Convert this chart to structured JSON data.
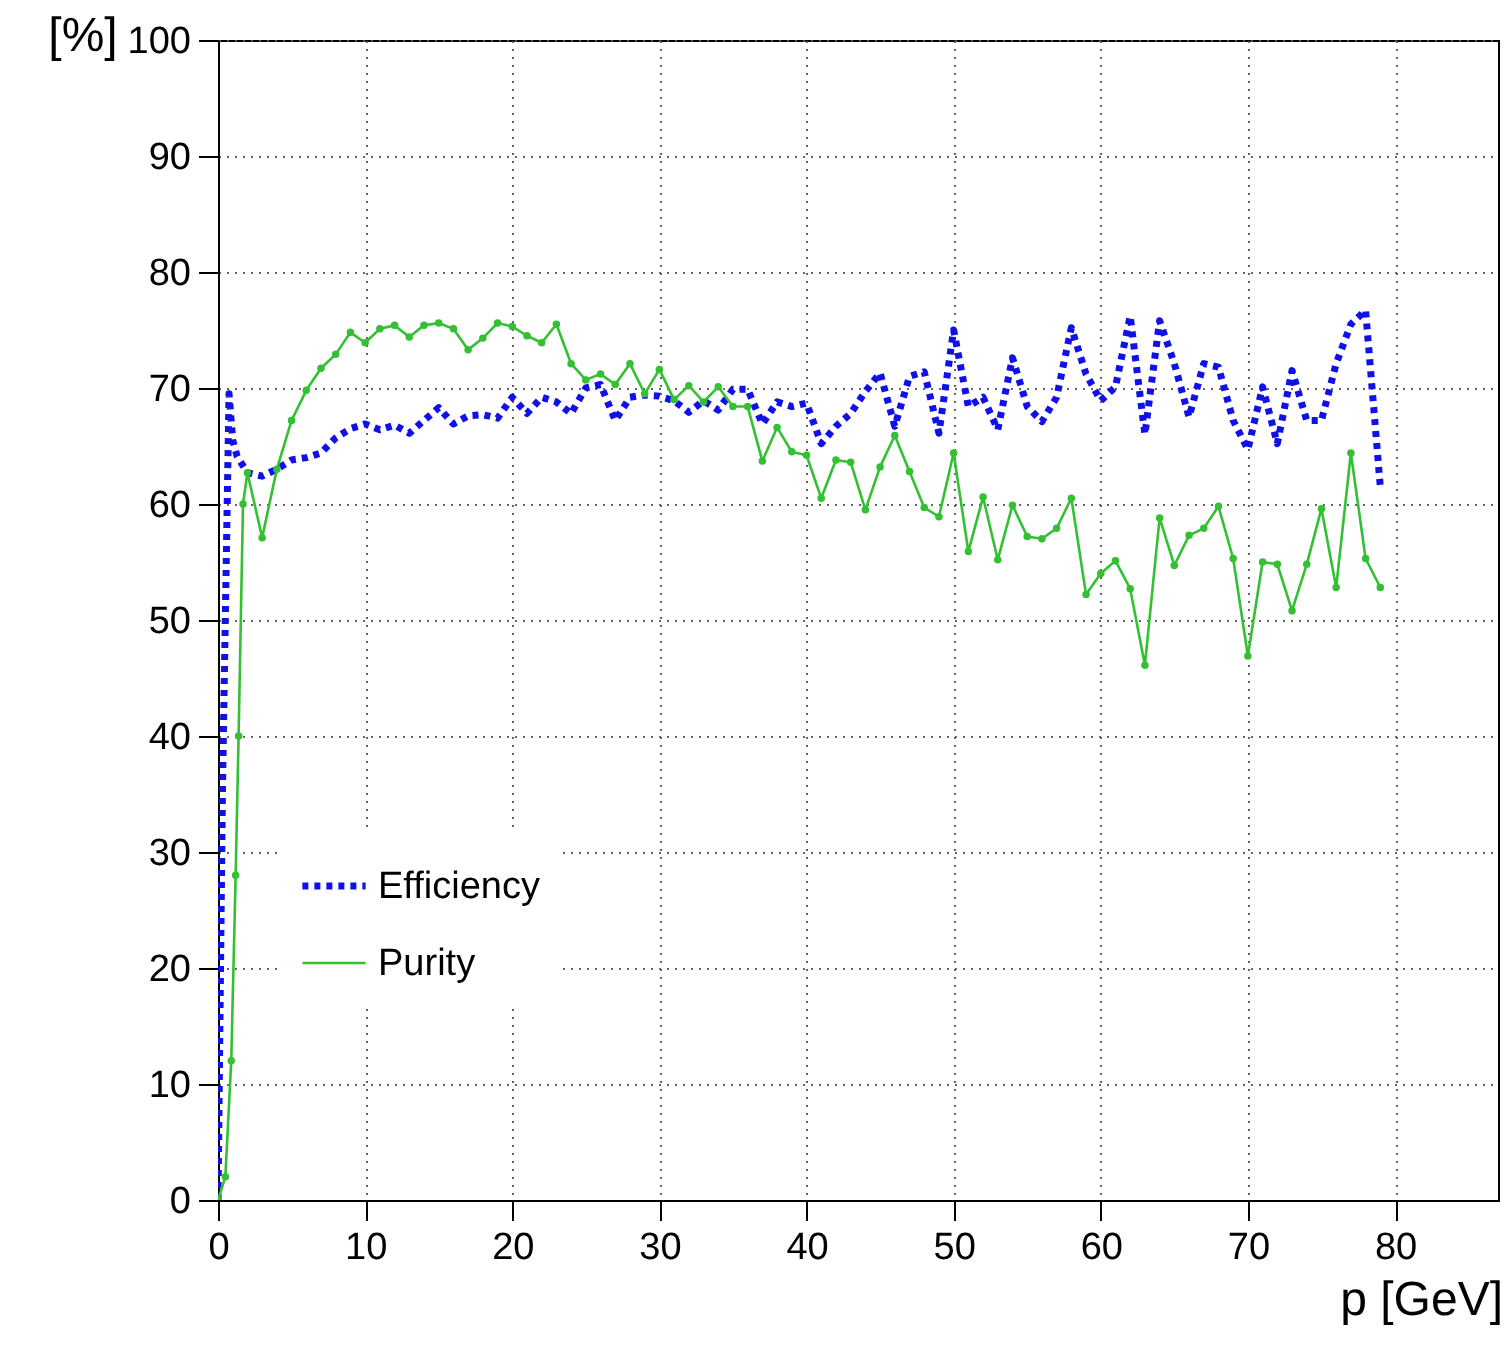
{
  "chart_data": {
    "type": "line",
    "xlabel": "p [GeV]",
    "ylabel": "[%]",
    "xlim": [
      0,
      87
    ],
    "xticks": [
      0,
      10,
      20,
      30,
      40,
      50,
      60,
      70,
      80
    ],
    "ylim": [
      0,
      100
    ],
    "yticks": [
      0,
      10,
      20,
      30,
      40,
      50,
      60,
      70,
      80,
      90,
      100
    ],
    "grid": true,
    "legend": "bottom left",
    "series": [
      {
        "name": "Efficiency",
        "color": "#1010e8",
        "line_style": "dotted",
        "marker": "none",
        "x": [
          0,
          0.3,
          0.75,
          1,
          1.3,
          2,
          3,
          4,
          5,
          6,
          7,
          8,
          9,
          10,
          11,
          12,
          13,
          14,
          15,
          16,
          17,
          18,
          19,
          20,
          21,
          22,
          23,
          24,
          25,
          26,
          27,
          28,
          29,
          30,
          31,
          32,
          33,
          34,
          35,
          36,
          37,
          38,
          39,
          40,
          41,
          42,
          43,
          44,
          45,
          46,
          47,
          48,
          49,
          50,
          51,
          52,
          53,
          54,
          55,
          56,
          57,
          58,
          59,
          60,
          61,
          62,
          63,
          64,
          65,
          66,
          67,
          68,
          69,
          70,
          71,
          72,
          73,
          74,
          75,
          76,
          77,
          78,
          79
        ],
        "values": [
          0,
          35,
          69.5,
          65.5,
          64.1,
          62.7,
          62.4,
          63.0,
          63.8,
          64.0,
          64.4,
          65.7,
          66.5,
          66.9,
          66.4,
          66.8,
          66.1,
          67.2,
          68.3,
          66.9,
          67.6,
          67.7,
          67.4,
          69.2,
          67.8,
          69.2,
          68.8,
          67.8,
          70.0,
          70.3,
          67.2,
          69.2,
          69.4,
          69.3,
          68.9,
          67.9,
          68.9,
          68.1,
          69.9,
          69.9,
          66.9,
          68.8,
          68.4,
          68.7,
          65.2,
          66.7,
          67.8,
          69.7,
          71.3,
          66.7,
          71.0,
          71.4,
          66.1,
          75.0,
          68.4,
          69.2,
          66.4,
          72.6,
          68.4,
          67.1,
          69.2,
          75.2,
          71.2,
          68.9,
          70.1,
          76.2,
          66.0,
          75.8,
          72.1,
          67.5,
          72.1,
          71.8,
          67.2,
          64.7,
          70.1,
          65.2,
          71.5,
          67.2,
          67.2,
          72.1,
          75.5,
          76.7,
          61.5
        ]
      },
      {
        "name": "Purity",
        "color": "#33c033",
        "line_style": "solid",
        "marker": "circle",
        "x": [
          0,
          0.5,
          0.9,
          1.2,
          1.4,
          1.7,
          2,
          3,
          4,
          5,
          6,
          7,
          8,
          9,
          10,
          11,
          12,
          13,
          14,
          15,
          16,
          17,
          18,
          19,
          20,
          21,
          22,
          23,
          24,
          25,
          26,
          27,
          28,
          29,
          30,
          31,
          32,
          33,
          34,
          35,
          36,
          37,
          38,
          39,
          40,
          41,
          42,
          43,
          44,
          45,
          46,
          47,
          48,
          49,
          50,
          51,
          52,
          53,
          54,
          55,
          56,
          57,
          58,
          59,
          60,
          61,
          62,
          63,
          64,
          65,
          66,
          67,
          68,
          69,
          70,
          71,
          72,
          73,
          74,
          75,
          76,
          77,
          78,
          79
        ],
        "values": [
          0,
          2,
          12,
          28,
          40,
          60,
          62.7,
          57.1,
          63,
          67.2,
          69.8,
          71.7,
          72.9,
          74.8,
          73.9,
          75.1,
          75.4,
          74.4,
          75.4,
          75.6,
          75.1,
          73.3,
          74.3,
          75.6,
          75.3,
          74.5,
          73.9,
          75.5,
          72.1,
          70.7,
          71.2,
          70.3,
          72.1,
          69.5,
          71.6,
          69.0,
          70.2,
          68.8,
          70.1,
          68.4,
          68.4,
          63.7,
          66.6,
          64.5,
          64.2,
          60.5,
          63.8,
          63.6,
          59.5,
          63.2,
          65.9,
          62.8,
          59.7,
          58.9,
          64.4,
          55.9,
          60.6,
          55.2,
          59.9,
          57.2,
          57.0,
          57.9,
          60.5,
          52.2,
          54.0,
          55.1,
          52.7,
          46.1,
          58.8,
          54.7,
          57.3,
          57.9,
          59.8,
          55.3,
          46.9,
          55.0,
          54.8,
          50.8,
          54.8,
          59.6,
          52.8,
          64.4,
          55.3,
          52.8
        ]
      }
    ]
  }
}
